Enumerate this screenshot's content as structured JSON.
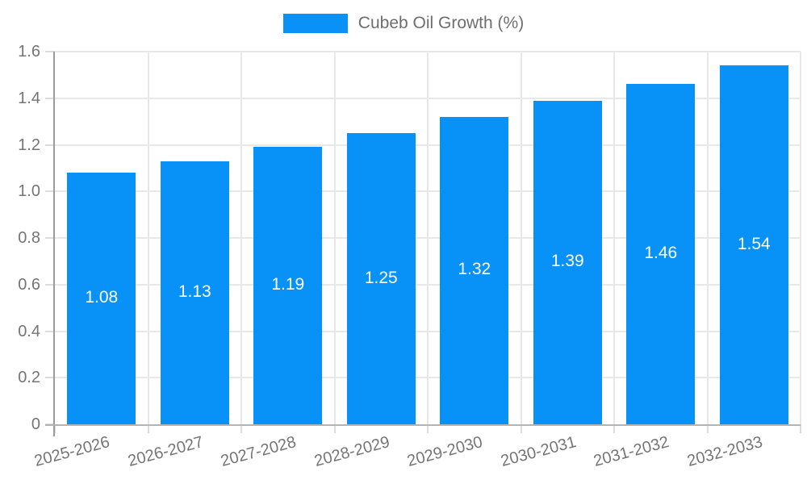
{
  "legend": {
    "label": "Cubeb Oil Growth (%)",
    "position": "top"
  },
  "colors": {
    "bar": "#0892f8",
    "grid": "#e8e8e8",
    "axis_y": "#9b9b9b",
    "axis_x": "#b4b4b4",
    "tick_text": "#757575",
    "legend_text": "#6e6e6e",
    "bar_label_text": "#ffffff",
    "background": "#ffffff"
  },
  "chart_data": {
    "type": "bar",
    "title": "",
    "xlabel": "",
    "ylabel": "",
    "series_name": "Cubeb Oil Growth (%)",
    "categories": [
      "2025-2026",
      "2026-2027",
      "2027-2028",
      "2028-2029",
      "2029-2030",
      "2030-2031",
      "2031-2032",
      "2032-2033"
    ],
    "values": [
      1.08,
      1.13,
      1.19,
      1.25,
      1.32,
      1.39,
      1.46,
      1.54
    ],
    "bar_labels": [
      "1.08",
      "1.13",
      "1.19",
      "1.25",
      "1.32",
      "1.39",
      "1.46",
      "1.54"
    ],
    "ylim": [
      0,
      1.6
    ],
    "yticks": [
      "0",
      "0.2",
      "0.4",
      "0.6",
      "0.8",
      "1.0",
      "1.2",
      "1.4",
      "1.6"
    ],
    "grid": true,
    "legend_position": "top",
    "x_label_rotation_deg": -15
  }
}
